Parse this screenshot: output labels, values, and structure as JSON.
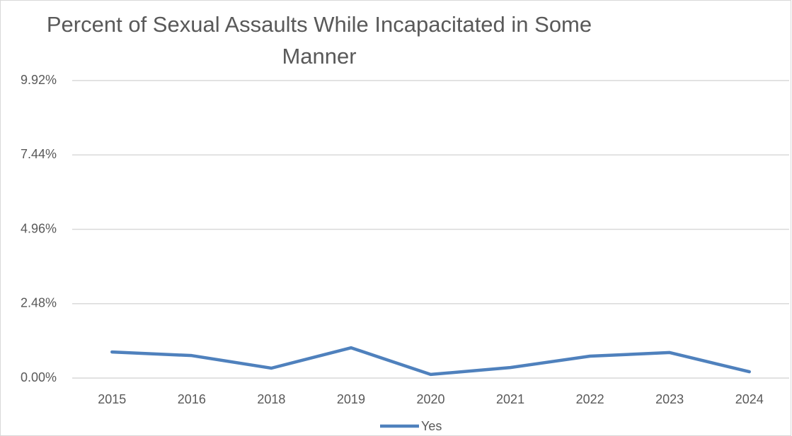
{
  "chart_data": {
    "type": "line",
    "title": "Percent of Sexual Assaults While Incapacitated in Some Manner",
    "categories": [
      "2015",
      "2016",
      "2018",
      "2019",
      "2020",
      "2021",
      "2022",
      "2023",
      "2024"
    ],
    "series": [
      {
        "name": "Yes",
        "color": "#4f81bd",
        "values": [
          0.87,
          0.75,
          0.33,
          1.01,
          0.12,
          0.35,
          0.73,
          0.85,
          0.21
        ]
      }
    ],
    "ylim": [
      0,
      9.92
    ],
    "yticks": [
      {
        "value": 0,
        "label": "0.00%"
      },
      {
        "value": 2.48,
        "label": "2.48%"
      },
      {
        "value": 4.96,
        "label": "4.96%"
      },
      {
        "value": 7.44,
        "label": "7.44%"
      },
      {
        "value": 9.92,
        "label": "9.92%"
      }
    ],
    "grid": true,
    "legend": "bottom"
  }
}
